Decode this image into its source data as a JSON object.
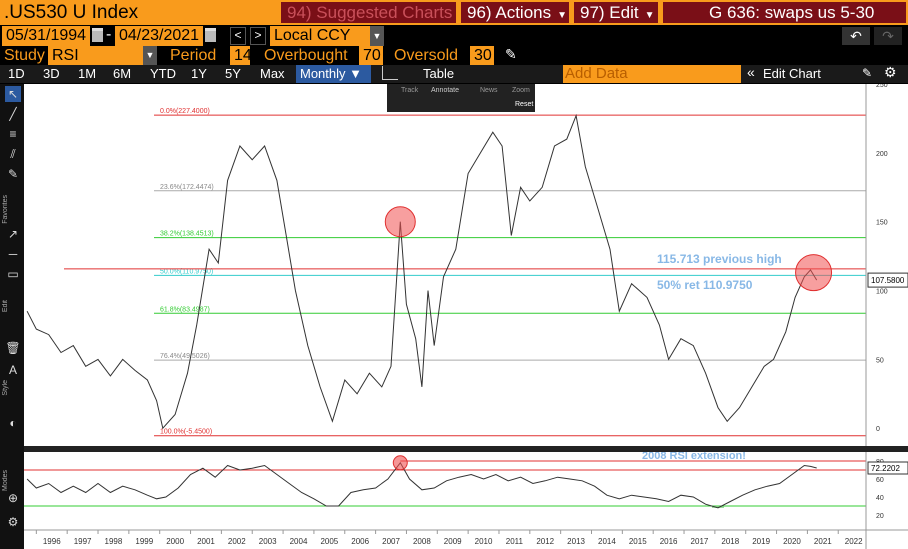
{
  "header": {
    "ticker": ".US530 U Index",
    "suggested": "94) Suggested Charts",
    "actions": "96) Actions",
    "edit": "97) Edit",
    "title": "G 636: swaps us 5-30"
  },
  "dates": {
    "start": "05/31/1994",
    "end": "04/23/2021",
    "currency": "Local CCY"
  },
  "study": {
    "label": "Study",
    "value": "RSI",
    "period_label": "Period",
    "period": "14",
    "overbought_label": "Overbought",
    "overbought": "70",
    "oversold_label": "Oversold",
    "oversold": "30"
  },
  "ranges": [
    "1D",
    "3D",
    "1M",
    "6M",
    "YTD",
    "1Y",
    "5Y",
    "Max"
  ],
  "frequency": "Monthly ▼",
  "table_label": "Table",
  "add_data_placeholder": "Add Data",
  "edit_chart": "Edit Chart",
  "popup": {
    "track": "Track",
    "annotate": "Annotate",
    "news": "News",
    "zoom": "Zoom",
    "reset": "Reset"
  },
  "annotations": {
    "prev_high": "115.713 previous high",
    "ret50": "50% ret 110.9750",
    "rsi_ext": "2008 RSI extension!"
  },
  "fib_labels": [
    "0.0%(227.4000)",
    "23.6%(172.4474)",
    "38.2%(138.4513)",
    "50.0%(110.9750)",
    "61.8%(83.4987)",
    "76.4%(49.5026)",
    "100.0%(-5.4500)"
  ],
  "price_ticks": [
    "250",
    "200",
    "150",
    "100",
    "50",
    "0"
  ],
  "rsi_ticks": [
    "80",
    "60",
    "40",
    "20"
  ],
  "last_price": "107.5800",
  "last_rsi": "72.2202",
  "years": [
    "1996",
    "1997",
    "1998",
    "1999",
    "2000",
    "2001",
    "2002",
    "2003",
    "2004",
    "2005",
    "2006",
    "2007",
    "2008",
    "2009",
    "2010",
    "2011",
    "2012",
    "2013",
    "2014",
    "2015",
    "2016",
    "2017",
    "2018",
    "2019",
    "2020",
    "2021",
    "2022"
  ],
  "side_tabs": {
    "favorites": "Favorites",
    "edit": "Edit",
    "style": "Style",
    "modes": "Modes"
  },
  "chart_data": [
    {
      "type": "line",
      "series": [
        {
          "values": [
            [
              1995.7,
              85
            ],
            [
              1996.0,
              72
            ],
            [
              1996.4,
              68
            ],
            [
              1996.8,
              55
            ],
            [
              1997.2,
              60
            ],
            [
              1997.6,
              45
            ],
            [
              1998.0,
              50
            ],
            [
              1998.4,
              38
            ],
            [
              1998.8,
              50
            ],
            [
              1999.2,
              42
            ],
            [
              1999.6,
              35
            ],
            [
              1999.9,
              20
            ],
            [
              2000.1,
              0
            ],
            [
              2000.5,
              10
            ],
            [
              2000.9,
              40
            ],
            [
              2001.2,
              75
            ],
            [
              2001.6,
              130
            ],
            [
              2001.9,
              120
            ],
            [
              2002.2,
              180
            ],
            [
              2002.6,
              205
            ],
            [
              2003.0,
              195
            ],
            [
              2003.4,
              205
            ],
            [
              2003.8,
              180
            ],
            [
              2004.1,
              140
            ],
            [
              2004.4,
              100
            ],
            [
              2004.8,
              60
            ],
            [
              2005.2,
              30
            ],
            [
              2005.6,
              5
            ],
            [
              2006.0,
              35
            ],
            [
              2006.4,
              25
            ],
            [
              2006.8,
              40
            ],
            [
              2007.2,
              30
            ],
            [
              2007.5,
              45
            ],
            [
              2007.8,
              150
            ],
            [
              2008.0,
              90
            ],
            [
              2008.3,
              65
            ],
            [
              2008.5,
              30
            ],
            [
              2008.7,
              100
            ],
            [
              2008.9,
              60
            ],
            [
              2009.2,
              110
            ],
            [
              2009.6,
              130
            ],
            [
              2010.0,
              185
            ],
            [
              2010.4,
              200
            ],
            [
              2010.8,
              215
            ],
            [
              2011.1,
              205
            ],
            [
              2011.4,
              140
            ],
            [
              2011.7,
              175
            ],
            [
              2012.0,
              165
            ],
            [
              2012.4,
              175
            ],
            [
              2012.8,
              205
            ],
            [
              2013.2,
              210
            ],
            [
              2013.5,
              227
            ],
            [
              2013.8,
              190
            ],
            [
              2014.2,
              160
            ],
            [
              2014.6,
              130
            ],
            [
              2014.9,
              85
            ],
            [
              2015.3,
              105
            ],
            [
              2015.8,
              95
            ],
            [
              2016.2,
              75
            ],
            [
              2016.5,
              50
            ],
            [
              2016.9,
              65
            ],
            [
              2017.3,
              60
            ],
            [
              2017.7,
              40
            ],
            [
              2018.1,
              15
            ],
            [
              2018.4,
              5
            ],
            [
              2018.8,
              15
            ],
            [
              2019.2,
              30
            ],
            [
              2019.6,
              45
            ],
            [
              2019.9,
              50
            ],
            [
              2020.3,
              70
            ],
            [
              2020.6,
              95
            ],
            [
              2020.9,
              110
            ],
            [
              2021.1,
              115
            ],
            [
              2021.3,
              107.58
            ]
          ]
        }
      ],
      "ylim": [
        -10,
        250
      ],
      "xlim": [
        1995.6,
        2022.9
      ],
      "hlines": [
        227.4,
        172.4474,
        138.4513,
        110.975,
        83.4987,
        49.5026,
        -5.45,
        115.713
      ]
    },
    {
      "type": "line",
      "series": [
        {
          "values": [
            [
              1995.7,
              60
            ],
            [
              1996.0,
              50
            ],
            [
              1996.4,
              55
            ],
            [
              1996.8,
              45
            ],
            [
              1997.2,
              52
            ],
            [
              1997.6,
              45
            ],
            [
              1998.0,
              55
            ],
            [
              1998.4,
              45
            ],
            [
              1998.8,
              52
            ],
            [
              1999.2,
              48
            ],
            [
              1999.6,
              42
            ],
            [
              1999.9,
              38
            ],
            [
              2000.2,
              40
            ],
            [
              2000.6,
              50
            ],
            [
              2001.0,
              65
            ],
            [
              2001.4,
              72
            ],
            [
              2001.8,
              62
            ],
            [
              2002.2,
              75
            ],
            [
              2002.6,
              70
            ],
            [
              2003.0,
              72
            ],
            [
              2003.4,
              75
            ],
            [
              2003.8,
              65
            ],
            [
              2004.2,
              55
            ],
            [
              2004.6,
              45
            ],
            [
              2005.0,
              38
            ],
            [
              2005.4,
              30
            ],
            [
              2005.8,
              30
            ],
            [
              2006.2,
              45
            ],
            [
              2006.6,
              48
            ],
            [
              2007.0,
              50
            ],
            [
              2007.4,
              60
            ],
            [
              2007.8,
              78
            ],
            [
              2008.1,
              60
            ],
            [
              2008.5,
              48
            ],
            [
              2008.9,
              50
            ],
            [
              2009.3,
              58
            ],
            [
              2009.7,
              62
            ],
            [
              2010.1,
              65
            ],
            [
              2010.5,
              60
            ],
            [
              2010.9,
              65
            ],
            [
              2011.3,
              58
            ],
            [
              2011.7,
              62
            ],
            [
              2012.1,
              55
            ],
            [
              2012.5,
              58
            ],
            [
              2012.9,
              62
            ],
            [
              2013.3,
              60
            ],
            [
              2013.7,
              58
            ],
            [
              2014.1,
              52
            ],
            [
              2014.5,
              42
            ],
            [
              2014.9,
              38
            ],
            [
              2015.3,
              42
            ],
            [
              2015.7,
              40
            ],
            [
              2016.1,
              38
            ],
            [
              2016.5,
              35
            ],
            [
              2016.9,
              42
            ],
            [
              2017.3,
              40
            ],
            [
              2017.7,
              32
            ],
            [
              2018.1,
              28
            ],
            [
              2018.5,
              35
            ],
            [
              2018.9,
              42
            ],
            [
              2019.3,
              48
            ],
            [
              2019.7,
              52
            ],
            [
              2020.1,
              55
            ],
            [
              2020.5,
              65
            ],
            [
              2020.9,
              75
            ],
            [
              2021.1,
              74
            ],
            [
              2021.3,
              72.22
            ]
          ]
        }
      ],
      "ylim": [
        10,
        90
      ],
      "xlim": [
        1995.6,
        2022.9
      ],
      "hlines": [
        70,
        30
      ]
    }
  ]
}
